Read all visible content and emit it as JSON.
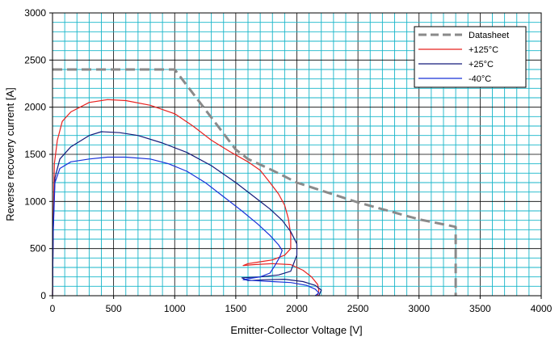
{
  "chart_data": {
    "type": "line",
    "xlabel": "Emitter-Collector Voltage [V]",
    "ylabel": "Reverse recovery current [A]",
    "xlim": [
      0,
      4000
    ],
    "ylim": [
      0,
      3000
    ],
    "x_ticks": [
      0,
      500,
      1000,
      1500,
      2000,
      2500,
      3000,
      3500,
      4000
    ],
    "y_ticks": [
      0,
      500,
      1000,
      1500,
      2000,
      2500,
      3000
    ],
    "x_tick_labels": [
      "0",
      "500",
      "1000",
      "1500",
      "2000",
      "2500",
      "3000",
      "3500",
      "4000"
    ],
    "y_tick_labels": [
      "0",
      "500",
      "1000",
      "1500",
      "2000",
      "2500",
      "3000"
    ],
    "x_minor_step": 100,
    "y_minor_step": 100,
    "grid": true,
    "grid_color": "#17b5c9",
    "legend_position": "top-right",
    "series": [
      {
        "name": "Datasheet",
        "color": "#8a8a8a",
        "style": "dashed",
        "points": [
          [
            0,
            2400
          ],
          [
            1000,
            2400
          ],
          [
            1500,
            1550
          ],
          [
            1600,
            1450
          ],
          [
            1800,
            1330
          ],
          [
            2000,
            1200
          ],
          [
            2500,
            990
          ],
          [
            3000,
            810
          ],
          [
            3300,
            730
          ],
          [
            3300,
            0
          ]
        ]
      },
      {
        "name": "+125°C",
        "color": "#e8201e",
        "style": "solid",
        "points": [
          [
            0,
            0
          ],
          [
            5,
            700
          ],
          [
            15,
            1400
          ],
          [
            40,
            1650
          ],
          [
            80,
            1850
          ],
          [
            150,
            1950
          ],
          [
            300,
            2050
          ],
          [
            450,
            2080
          ],
          [
            600,
            2070
          ],
          [
            800,
            2020
          ],
          [
            1000,
            1930
          ],
          [
            1150,
            1800
          ],
          [
            1300,
            1650
          ],
          [
            1450,
            1530
          ],
          [
            1600,
            1420
          ],
          [
            1700,
            1330
          ],
          [
            1780,
            1200
          ],
          [
            1850,
            1080
          ],
          [
            1900,
            960
          ],
          [
            1930,
            820
          ],
          [
            1950,
            650
          ],
          [
            1950,
            500
          ],
          [
            1900,
            430
          ],
          [
            1800,
            380
          ],
          [
            1700,
            360
          ],
          [
            1600,
            340
          ],
          [
            1560,
            320
          ],
          [
            1650,
            330
          ],
          [
            1800,
            340
          ],
          [
            1950,
            330
          ],
          [
            2050,
            270
          ],
          [
            2120,
            200
          ],
          [
            2170,
            120
          ],
          [
            2180,
            60
          ],
          [
            2170,
            0
          ]
        ]
      },
      {
        "name": "+25°C",
        "color": "#141a7a",
        "style": "solid",
        "points": [
          [
            0,
            0
          ],
          [
            5,
            700
          ],
          [
            20,
            1250
          ],
          [
            60,
            1450
          ],
          [
            150,
            1580
          ],
          [
            300,
            1700
          ],
          [
            400,
            1740
          ],
          [
            550,
            1730
          ],
          [
            700,
            1700
          ],
          [
            900,
            1620
          ],
          [
            1100,
            1520
          ],
          [
            1300,
            1380
          ],
          [
            1500,
            1200
          ],
          [
            1650,
            1050
          ],
          [
            1780,
            920
          ],
          [
            1880,
            800
          ],
          [
            1950,
            680
          ],
          [
            2000,
            550
          ],
          [
            2000,
            430
          ],
          [
            1970,
            330
          ],
          [
            1950,
            260
          ],
          [
            1850,
            220
          ],
          [
            1700,
            200
          ],
          [
            1550,
            190
          ],
          [
            1600,
            160
          ],
          [
            1750,
            170
          ],
          [
            1900,
            175
          ],
          [
            2050,
            150
          ],
          [
            2150,
            110
          ],
          [
            2200,
            60
          ],
          [
            2180,
            0
          ]
        ]
      },
      {
        "name": "-40°C",
        "color": "#1830d8",
        "style": "solid",
        "points": [
          [
            0,
            0
          ],
          [
            5,
            650
          ],
          [
            20,
            1200
          ],
          [
            60,
            1350
          ],
          [
            150,
            1420
          ],
          [
            300,
            1450
          ],
          [
            450,
            1470
          ],
          [
            600,
            1470
          ],
          [
            800,
            1450
          ],
          [
            950,
            1400
          ],
          [
            1100,
            1320
          ],
          [
            1250,
            1200
          ],
          [
            1400,
            1050
          ],
          [
            1550,
            900
          ],
          [
            1680,
            760
          ],
          [
            1780,
            640
          ],
          [
            1850,
            540
          ],
          [
            1880,
            480
          ],
          [
            1860,
            410
          ],
          [
            1820,
            320
          ],
          [
            1780,
            240
          ],
          [
            1700,
            200
          ],
          [
            1600,
            180
          ],
          [
            1560,
            170
          ],
          [
            1650,
            160
          ],
          [
            1800,
            150
          ],
          [
            1950,
            140
          ],
          [
            2080,
            110
          ],
          [
            2150,
            70
          ],
          [
            2180,
            30
          ],
          [
            2150,
            0
          ]
        ]
      }
    ]
  }
}
